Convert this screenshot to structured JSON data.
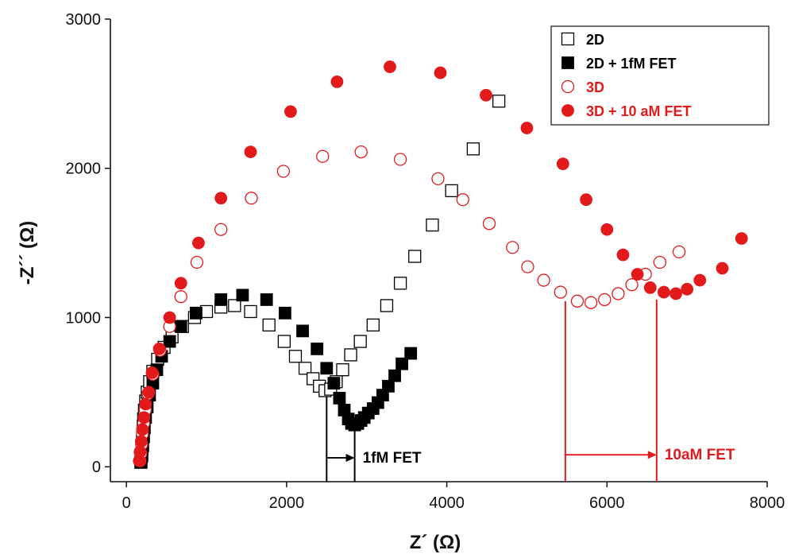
{
  "chart_data": {
    "type": "scatter",
    "title": "",
    "xlabel": "Z´ (Ω)",
    "ylabel": "-Z´´ (Ω)",
    "xlim": [
      -200,
      8000
    ],
    "ylim": [
      -100,
      3000
    ],
    "xticks": [
      0,
      2000,
      4000,
      6000,
      8000
    ],
    "yticks": [
      0,
      1000,
      2000,
      3000
    ],
    "grid": false,
    "legend_position": "top-right",
    "series": [
      {
        "name": "2D",
        "marker": "square-open",
        "color": "#000000",
        "points": [
          [
            180,
            30
          ],
          [
            190,
            70
          ],
          [
            195,
            120
          ],
          [
            200,
            170
          ],
          [
            205,
            220
          ],
          [
            210,
            270
          ],
          [
            215,
            320
          ],
          [
            225,
            380
          ],
          [
            240,
            440
          ],
          [
            260,
            500
          ],
          [
            290,
            570
          ],
          [
            330,
            640
          ],
          [
            390,
            720
          ],
          [
            470,
            800
          ],
          [
            570,
            870
          ],
          [
            700,
            940
          ],
          [
            850,
            1000
          ],
          [
            1000,
            1040
          ],
          [
            1180,
            1070
          ],
          [
            1350,
            1080
          ],
          [
            1550,
            1040
          ],
          [
            1780,
            950
          ],
          [
            1970,
            840
          ],
          [
            2110,
            740
          ],
          [
            2230,
            660
          ],
          [
            2330,
            590
          ],
          [
            2410,
            540
          ],
          [
            2480,
            510
          ],
          [
            2550,
            520
          ],
          [
            2620,
            570
          ],
          [
            2700,
            650
          ],
          [
            2800,
            750
          ],
          [
            2920,
            840
          ],
          [
            3080,
            950
          ],
          [
            3250,
            1080
          ],
          [
            3420,
            1230
          ],
          [
            3600,
            1410
          ],
          [
            3820,
            1620
          ],
          [
            4060,
            1850
          ],
          [
            4330,
            2130
          ],
          [
            4650,
            2450
          ]
        ]
      },
      {
        "name": "2D + 1fM FET",
        "marker": "square-filled",
        "color": "#000000",
        "points": [
          [
            185,
            30
          ],
          [
            195,
            80
          ],
          [
            205,
            140
          ],
          [
            215,
            200
          ],
          [
            225,
            260
          ],
          [
            240,
            330
          ],
          [
            260,
            400
          ],
          [
            290,
            480
          ],
          [
            330,
            560
          ],
          [
            380,
            650
          ],
          [
            440,
            740
          ],
          [
            540,
            840
          ],
          [
            680,
            940
          ],
          [
            870,
            1030
          ],
          [
            1180,
            1120
          ],
          [
            1450,
            1150
          ],
          [
            1750,
            1120
          ],
          [
            1980,
            1030
          ],
          [
            2200,
            910
          ],
          [
            2380,
            790
          ],
          [
            2500,
            660
          ],
          [
            2590,
            560
          ],
          [
            2660,
            460
          ],
          [
            2720,
            380
          ],
          [
            2770,
            320
          ],
          [
            2810,
            290
          ],
          [
            2850,
            280
          ],
          [
            2890,
            290
          ],
          [
            2930,
            310
          ],
          [
            2970,
            330
          ],
          [
            3020,
            360
          ],
          [
            3080,
            390
          ],
          [
            3140,
            430
          ],
          [
            3200,
            480
          ],
          [
            3270,
            540
          ],
          [
            3350,
            610
          ],
          [
            3440,
            690
          ],
          [
            3550,
            760
          ]
        ]
      },
      {
        "name": "3D",
        "marker": "circle-open",
        "color": "#e31a1c",
        "points": [
          [
            170,
            40
          ],
          [
            180,
            90
          ],
          [
            190,
            150
          ],
          [
            200,
            220
          ],
          [
            215,
            290
          ],
          [
            235,
            380
          ],
          [
            270,
            490
          ],
          [
            330,
            620
          ],
          [
            420,
            780
          ],
          [
            540,
            940
          ],
          [
            680,
            1140
          ],
          [
            880,
            1370
          ],
          [
            1180,
            1590
          ],
          [
            1560,
            1800
          ],
          [
            1960,
            1980
          ],
          [
            2450,
            2080
          ],
          [
            2930,
            2110
          ],
          [
            3420,
            2060
          ],
          [
            3890,
            1930
          ],
          [
            4200,
            1790
          ],
          [
            4530,
            1630
          ],
          [
            4820,
            1470
          ],
          [
            5010,
            1340
          ],
          [
            5210,
            1250
          ],
          [
            5420,
            1170
          ],
          [
            5630,
            1110
          ],
          [
            5800,
            1100
          ],
          [
            5970,
            1120
          ],
          [
            6140,
            1160
          ],
          [
            6310,
            1220
          ],
          [
            6480,
            1290
          ],
          [
            6660,
            1370
          ],
          [
            6900,
            1440
          ]
        ]
      },
      {
        "name": "3D + 10 aM FET",
        "marker": "circle-filled",
        "color": "#e31a1c",
        "points": [
          [
            160,
            40
          ],
          [
            170,
            100
          ],
          [
            185,
            170
          ],
          [
            200,
            250
          ],
          [
            220,
            330
          ],
          [
            240,
            420
          ],
          [
            280,
            500
          ],
          [
            320,
            630
          ],
          [
            410,
            790
          ],
          [
            540,
            1000
          ],
          [
            680,
            1230
          ],
          [
            900,
            1500
          ],
          [
            1180,
            1800
          ],
          [
            1550,
            2110
          ],
          [
            2050,
            2380
          ],
          [
            2630,
            2580
          ],
          [
            3290,
            2680
          ],
          [
            3920,
            2640
          ],
          [
            4490,
            2490
          ],
          [
            5000,
            2270
          ],
          [
            5450,
            2030
          ],
          [
            5740,
            1790
          ],
          [
            6000,
            1590
          ],
          [
            6200,
            1420
          ],
          [
            6380,
            1290
          ],
          [
            6540,
            1200
          ],
          [
            6710,
            1170
          ],
          [
            6860,
            1160
          ],
          [
            7000,
            1190
          ],
          [
            7160,
            1250
          ],
          [
            7440,
            1330
          ],
          [
            7680,
            1530
          ]
        ]
      }
    ],
    "annotations": [
      {
        "label": "1fM FET",
        "color": "#000000",
        "x_from": 2500,
        "x_to": 2850,
        "y_arrow": 60,
        "marker_bottoms": [
          [
            2500,
            520
          ],
          [
            2850,
            280
          ]
        ]
      },
      {
        "label": "10aM FET",
        "color": "#e31a1c",
        "x_from": 5480,
        "x_to": 6620,
        "y_arrow": 80,
        "marker_bottoms": [
          [
            5480,
            1110
          ],
          [
            6620,
            1120
          ]
        ]
      }
    ]
  }
}
